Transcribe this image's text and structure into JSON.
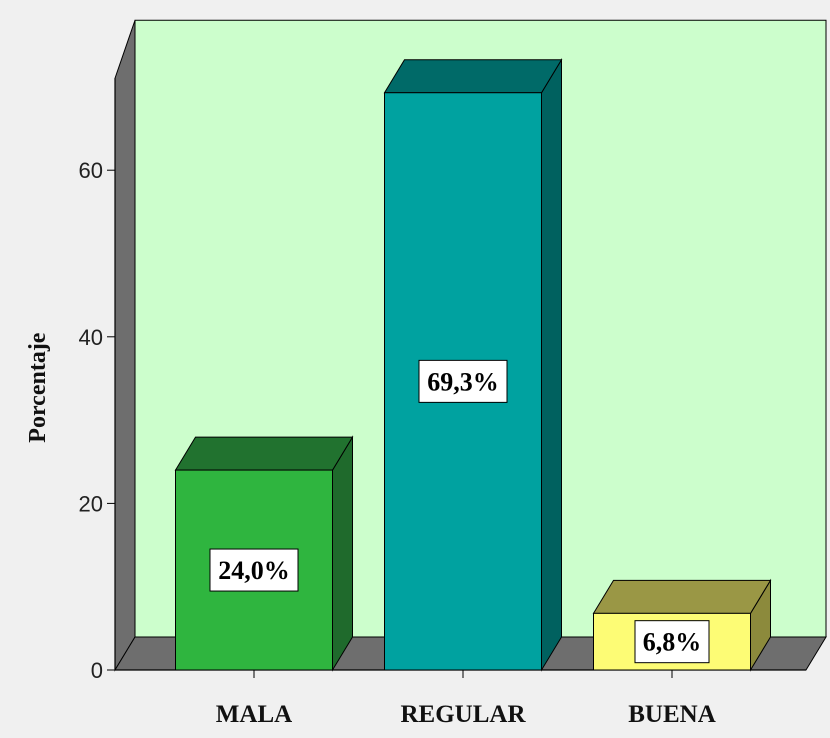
{
  "chart_data": {
    "type": "bar",
    "categories": [
      "MALA",
      "REGULAR",
      "BUENA"
    ],
    "values": [
      24.0,
      69.3,
      6.8
    ],
    "value_labels": [
      "24,0%",
      "69,3%",
      "6,8%"
    ],
    "ylabel": "Porcentaje",
    "xlabel": "",
    "ylim": [
      0,
      75
    ],
    "yticks": [
      "0",
      "20",
      "40",
      "60"
    ],
    "ytick_values": [
      0,
      20,
      40,
      60
    ],
    "grid": false,
    "style": "3d",
    "colors": {
      "background": "#f0f0f0",
      "plot_area": "#ccfecc",
      "walls": "#6e6e6e",
      "bars": [
        {
          "front": "#2fb53f",
          "top": "#21722f",
          "side": "#1f6a2c"
        },
        {
          "front": "#00a2a0",
          "top": "#006a68",
          "side": "#00615f"
        },
        {
          "front": "#fdfc75",
          "top": "#9a9745",
          "side": "#8c8a3c"
        }
      ],
      "label_box": "#ffffff"
    }
  }
}
